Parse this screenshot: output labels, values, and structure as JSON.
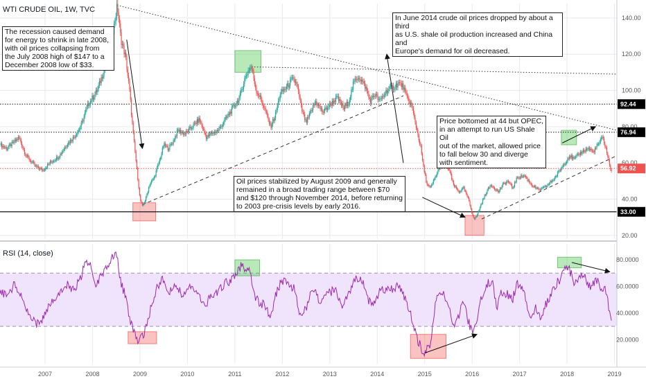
{
  "chart_data": {
    "type": "candlestick",
    "title": "WTI CRUDE OIL, 1W, TVC",
    "price_axis": {
      "ticks": [
        "140.00",
        "120.00",
        "100.00",
        "80.00",
        "60.00",
        "40.00",
        "20.00"
      ],
      "tick_values": [
        140,
        120,
        100,
        80,
        60,
        40,
        20
      ],
      "ylim": [
        18,
        148
      ]
    },
    "rsi_axis": {
      "title": "RSI (14, close)",
      "ticks": [
        "80.0000",
        "60.0000",
        "40.0000",
        "20.0000"
      ],
      "tick_values": [
        80,
        60,
        40,
        20
      ],
      "ylim": [
        2,
        92
      ],
      "band": [
        30,
        70
      ]
    },
    "x_ticks": [
      "2007",
      "2008",
      "2009",
      "2010",
      "2011",
      "2012",
      "2013",
      "2014",
      "2015",
      "2016",
      "2017",
      "2018",
      "2019"
    ],
    "x_tick_years": [
      2007,
      2008,
      2009,
      2010,
      2011,
      2012,
      2013,
      2014,
      2015,
      2016,
      2017,
      2018,
      2019
    ],
    "xlim": [
      2006.05,
      2019.05
    ],
    "price_anchors": [
      [
        2006.05,
        70
      ],
      [
        2006.2,
        68
      ],
      [
        2006.45,
        74
      ],
      [
        2006.6,
        64
      ],
      [
        2006.8,
        58
      ],
      [
        2006.95,
        56
      ],
      [
        2007.1,
        60
      ],
      [
        2007.3,
        64
      ],
      [
        2007.45,
        70
      ],
      [
        2007.6,
        74
      ],
      [
        2007.75,
        80
      ],
      [
        2007.9,
        92
      ],
      [
        2008.0,
        96
      ],
      [
        2008.1,
        100
      ],
      [
        2008.25,
        112
      ],
      [
        2008.35,
        124
      ],
      [
        2008.45,
        135
      ],
      [
        2008.52,
        147
      ],
      [
        2008.6,
        128
      ],
      [
        2008.7,
        118
      ],
      [
        2008.78,
        100
      ],
      [
        2008.85,
        78
      ],
      [
        2008.92,
        60
      ],
      [
        2008.98,
        45
      ],
      [
        2009.0,
        40
      ],
      [
        2009.05,
        36
      ],
      [
        2009.12,
        40
      ],
      [
        2009.2,
        48
      ],
      [
        2009.3,
        52
      ],
      [
        2009.42,
        62
      ],
      [
        2009.5,
        70
      ],
      [
        2009.6,
        68
      ],
      [
        2009.7,
        72
      ],
      [
        2009.8,
        78
      ],
      [
        2009.95,
        76
      ],
      [
        2010.1,
        80
      ],
      [
        2010.25,
        84
      ],
      [
        2010.4,
        74
      ],
      [
        2010.5,
        76
      ],
      [
        2010.65,
        78
      ],
      [
        2010.8,
        84
      ],
      [
        2010.95,
        90
      ],
      [
        2011.1,
        96
      ],
      [
        2011.2,
        106
      ],
      [
        2011.3,
        112
      ],
      [
        2011.35,
        113
      ],
      [
        2011.45,
        100
      ],
      [
        2011.55,
        95
      ],
      [
        2011.65,
        88
      ],
      [
        2011.75,
        80
      ],
      [
        2011.85,
        86
      ],
      [
        2011.95,
        98
      ],
      [
        2012.1,
        102
      ],
      [
        2012.2,
        106
      ],
      [
        2012.3,
        104
      ],
      [
        2012.4,
        90
      ],
      [
        2012.5,
        82
      ],
      [
        2012.6,
        88
      ],
      [
        2012.7,
        94
      ],
      [
        2012.85,
        88
      ],
      [
        2013.0,
        92
      ],
      [
        2013.15,
        96
      ],
      [
        2013.3,
        90
      ],
      [
        2013.4,
        94
      ],
      [
        2013.5,
        104
      ],
      [
        2013.6,
        108
      ],
      [
        2013.75,
        102
      ],
      [
        2013.85,
        94
      ],
      [
        2013.95,
        98
      ],
      [
        2014.05,
        94
      ],
      [
        2014.2,
        100
      ],
      [
        2014.35,
        102
      ],
      [
        2014.45,
        104
      ],
      [
        2014.55,
        102
      ],
      [
        2014.62,
        96
      ],
      [
        2014.72,
        92
      ],
      [
        2014.82,
        80
      ],
      [
        2014.92,
        68
      ],
      [
        2014.97,
        58
      ],
      [
        2015.05,
        48
      ],
      [
        2015.12,
        46
      ],
      [
        2015.22,
        52
      ],
      [
        2015.32,
        58
      ],
      [
        2015.42,
        60
      ],
      [
        2015.52,
        56
      ],
      [
        2015.6,
        48
      ],
      [
        2015.72,
        44
      ],
      [
        2015.82,
        46
      ],
      [
        2015.92,
        40
      ],
      [
        2016.0,
        32
      ],
      [
        2016.05,
        29
      ],
      [
        2016.1,
        31
      ],
      [
        2016.2,
        38
      ],
      [
        2016.3,
        44
      ],
      [
        2016.4,
        48
      ],
      [
        2016.55,
        44
      ],
      [
        2016.65,
        48
      ],
      [
        2016.75,
        50
      ],
      [
        2016.85,
        46
      ],
      [
        2016.95,
        52
      ],
      [
        2017.1,
        53
      ],
      [
        2017.25,
        48
      ],
      [
        2017.4,
        45
      ],
      [
        2017.5,
        46
      ],
      [
        2017.6,
        48
      ],
      [
        2017.75,
        52
      ],
      [
        2017.85,
        56
      ],
      [
        2017.95,
        60
      ],
      [
        2018.05,
        64
      ],
      [
        2018.15,
        62
      ],
      [
        2018.3,
        66
      ],
      [
        2018.45,
        68
      ],
      [
        2018.55,
        66
      ],
      [
        2018.65,
        70
      ],
      [
        2018.75,
        74
      ],
      [
        2018.82,
        68
      ],
      [
        2018.9,
        58
      ],
      [
        2018.95,
        55
      ]
    ],
    "rsi_anchors": [
      [
        2006.05,
        58
      ],
      [
        2006.2,
        52
      ],
      [
        2006.35,
        62
      ],
      [
        2006.5,
        55
      ],
      [
        2006.65,
        40
      ],
      [
        2006.8,
        32
      ],
      [
        2006.95,
        36
      ],
      [
        2007.1,
        48
      ],
      [
        2007.3,
        56
      ],
      [
        2007.45,
        62
      ],
      [
        2007.6,
        58
      ],
      [
        2007.75,
        66
      ],
      [
        2007.85,
        82
      ],
      [
        2007.95,
        76
      ],
      [
        2008.05,
        60
      ],
      [
        2008.15,
        66
      ],
      [
        2008.3,
        74
      ],
      [
        2008.42,
        84
      ],
      [
        2008.52,
        82
      ],
      [
        2008.6,
        62
      ],
      [
        2008.7,
        52
      ],
      [
        2008.8,
        34
      ],
      [
        2008.88,
        24
      ],
      [
        2008.95,
        20
      ],
      [
        2009.05,
        22
      ],
      [
        2009.15,
        30
      ],
      [
        2009.25,
        48
      ],
      [
        2009.35,
        58
      ],
      [
        2009.45,
        66
      ],
      [
        2009.6,
        56
      ],
      [
        2009.75,
        62
      ],
      [
        2009.9,
        54
      ],
      [
        2010.05,
        60
      ],
      [
        2010.2,
        58
      ],
      [
        2010.35,
        44
      ],
      [
        2010.5,
        54
      ],
      [
        2010.65,
        56
      ],
      [
        2010.8,
        62
      ],
      [
        2010.95,
        66
      ],
      [
        2011.05,
        72
      ],
      [
        2011.15,
        76
      ],
      [
        2011.3,
        72
      ],
      [
        2011.45,
        50
      ],
      [
        2011.6,
        46
      ],
      [
        2011.75,
        38
      ],
      [
        2011.85,
        52
      ],
      [
        2011.95,
        62
      ],
      [
        2012.1,
        64
      ],
      [
        2012.25,
        58
      ],
      [
        2012.4,
        36
      ],
      [
        2012.55,
        48
      ],
      [
        2012.65,
        60
      ],
      [
        2012.8,
        48
      ],
      [
        2012.95,
        54
      ],
      [
        2013.1,
        58
      ],
      [
        2013.25,
        46
      ],
      [
        2013.4,
        56
      ],
      [
        2013.55,
        66
      ],
      [
        2013.65,
        68
      ],
      [
        2013.8,
        50
      ],
      [
        2013.9,
        46
      ],
      [
        2014.05,
        56
      ],
      [
        2014.2,
        58
      ],
      [
        2014.35,
        58
      ],
      [
        2014.45,
        60
      ],
      [
        2014.55,
        54
      ],
      [
        2014.65,
        44
      ],
      [
        2014.75,
        34
      ],
      [
        2014.85,
        20
      ],
      [
        2014.95,
        12
      ],
      [
        2015.02,
        10
      ],
      [
        2015.12,
        18
      ],
      [
        2015.22,
        46
      ],
      [
        2015.32,
        58
      ],
      [
        2015.42,
        54
      ],
      [
        2015.52,
        44
      ],
      [
        2015.62,
        30
      ],
      [
        2015.72,
        38
      ],
      [
        2015.8,
        52
      ],
      [
        2015.9,
        36
      ],
      [
        2016.0,
        26
      ],
      [
        2016.08,
        30
      ],
      [
        2016.2,
        52
      ],
      [
        2016.3,
        62
      ],
      [
        2016.42,
        64
      ],
      [
        2016.52,
        44
      ],
      [
        2016.62,
        56
      ],
      [
        2016.75,
        54
      ],
      [
        2016.85,
        50
      ],
      [
        2016.95,
        62
      ],
      [
        2017.1,
        58
      ],
      [
        2017.2,
        36
      ],
      [
        2017.35,
        44
      ],
      [
        2017.45,
        34
      ],
      [
        2017.55,
        46
      ],
      [
        2017.7,
        58
      ],
      [
        2017.82,
        64
      ],
      [
        2017.92,
        70
      ],
      [
        2018.0,
        76
      ],
      [
        2018.08,
        70
      ],
      [
        2018.15,
        62
      ],
      [
        2018.25,
        66
      ],
      [
        2018.35,
        70
      ],
      [
        2018.45,
        60
      ],
      [
        2018.55,
        62
      ],
      [
        2018.65,
        66
      ],
      [
        2018.72,
        56
      ],
      [
        2018.8,
        62
      ],
      [
        2018.88,
        44
      ],
      [
        2018.95,
        34
      ]
    ],
    "hlines": [
      {
        "price": 92.44,
        "label": "92.44",
        "style": "dotted-black",
        "tag_color": "#000000"
      },
      {
        "price": 76.94,
        "label": "76.94",
        "style": "dotted-black",
        "tag_color": "#000000"
      },
      {
        "price": 56.92,
        "label": "56.92",
        "style": "dotted-red",
        "tag_color": "#ef5350"
      },
      {
        "price": 33.0,
        "label": "33.00",
        "style": "solid-black",
        "tag_color": "#000000"
      }
    ],
    "trendlines": [
      {
        "kind": "dotted",
        "points": [
          [
            2008.52,
            147
          ],
          [
            2019.05,
            78
          ]
        ]
      },
      {
        "kind": "dotted",
        "points": [
          [
            2011.35,
            113
          ],
          [
            2019.05,
            109
          ]
        ]
      },
      {
        "kind": "dashed",
        "points": [
          [
            2009.05,
            37
          ],
          [
            2014.55,
            97
          ]
        ]
      },
      {
        "kind": "dashed",
        "points": [
          [
            2016.2,
            29
          ],
          [
            2019.05,
            64
          ]
        ]
      }
    ],
    "price_boxes": [
      {
        "color": "red",
        "x": [
          2008.85,
          2009.33
        ],
        "y": [
          28,
          38
        ]
      },
      {
        "color": "green",
        "x": [
          2011.0,
          2011.55
        ],
        "y": [
          110,
          122
        ]
      },
      {
        "color": "red",
        "x": [
          2015.85,
          2016.25
        ],
        "y": [
          20,
          31
        ]
      },
      {
        "color": "green",
        "x": [
          2017.88,
          2018.2
        ],
        "y": [
          70,
          78
        ]
      }
    ],
    "rsi_boxes": [
      {
        "color": "red",
        "x": [
          2008.75,
          2009.35
        ],
        "y": [
          17,
          26
        ]
      },
      {
        "color": "green",
        "x": [
          2011.0,
          2011.52
        ],
        "y": [
          68,
          80
        ]
      },
      {
        "color": "red",
        "x": [
          2014.7,
          2015.45
        ],
        "y": [
          6,
          24
        ]
      },
      {
        "color": "green",
        "x": [
          2017.8,
          2018.3
        ],
        "y": [
          74,
          82
        ]
      }
    ],
    "arrows": [
      {
        "pane": "price",
        "from": [
          2008.72,
          128
        ],
        "to": [
          2009.05,
          68
        ]
      },
      {
        "pane": "price",
        "from": [
          2014.55,
          60
        ],
        "to": [
          2014.2,
          120
        ]
      },
      {
        "pane": "price",
        "from": [
          2014.95,
          41
        ],
        "to": [
          2015.85,
          30
        ]
      },
      {
        "pane": "price",
        "from": [
          2017.9,
          71
        ],
        "to": [
          2018.6,
          80
        ]
      },
      {
        "pane": "rsi",
        "from": [
          2015.0,
          10
        ],
        "to": [
          2016.1,
          24
        ]
      },
      {
        "pane": "rsi",
        "from": [
          2018.1,
          78
        ],
        "to": [
          2018.9,
          71
        ]
      }
    ]
  },
  "annotations": [
    {
      "text": "The recession caused demand\nfor energy to shrink in late 2008,\nwith oil prices collapsing from\nthe July 2008 high of $147 to a\nDecember 2008 low of $33."
    },
    {
      "text": "In June 2014 crude oil prices dropped by about a third\nas U.S. shale oil production increased and China and\nEurope's demand for oil decreased."
    },
    {
      "text": "Price bottomed at 44 but OPEC,\nin an attempt to run US Shale Oil\nout of the market, allowed price\nto fall below 30 and diverge\nwith sentiment."
    },
    {
      "text": "Oil prices stabilized by August 2009 and generally\nremained in a broad trading range between $70\nand $120 through November 2014, before returning\n to 2003 pre-crisis levels by early 2016."
    }
  ],
  "colors": {
    "up": "#26a69a",
    "down": "#ef5350",
    "grid": "#e6e9ee",
    "rsi_line": "#9c27b0",
    "rsi_band": "#efe4fb"
  }
}
